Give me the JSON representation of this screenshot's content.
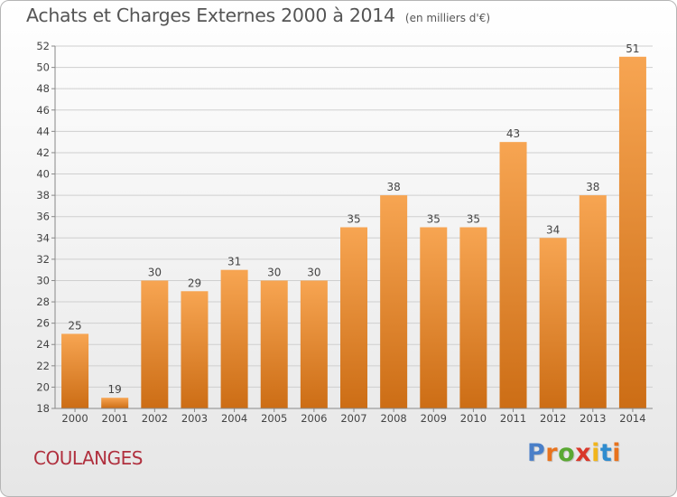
{
  "header": {
    "title": "Achats et Charges Externes 2000 à 2014",
    "subtitle": "(en milliers d'€)"
  },
  "footer": {
    "commune": "COULANGES",
    "brand": "Proxiti",
    "brand_colors": [
      "#4a7fc8",
      "#e8731d",
      "#5aa832",
      "#d9382a",
      "#f1b51b",
      "#2f8ccf",
      "#e8731d"
    ]
  },
  "colors": {
    "bar_light": "#f7a552",
    "bar_dark": "#cc6d15",
    "grid": "#cfcfcf",
    "text": "#444444",
    "commune": "#b0303e"
  },
  "chart_data": {
    "type": "bar",
    "categories": [
      "2000",
      "2001",
      "2002",
      "2003",
      "2004",
      "2005",
      "2006",
      "2007",
      "2008",
      "2009",
      "2010",
      "2011",
      "2012",
      "2013",
      "2014"
    ],
    "values": [
      25,
      19,
      30,
      29,
      31,
      30,
      30,
      35,
      38,
      35,
      35,
      43,
      34,
      38,
      51
    ],
    "ylim": [
      18,
      52
    ],
    "yticks": [
      18,
      20,
      22,
      24,
      26,
      28,
      30,
      32,
      34,
      36,
      38,
      40,
      42,
      44,
      46,
      48,
      50,
      52
    ],
    "grid": true,
    "data_labels": true
  }
}
